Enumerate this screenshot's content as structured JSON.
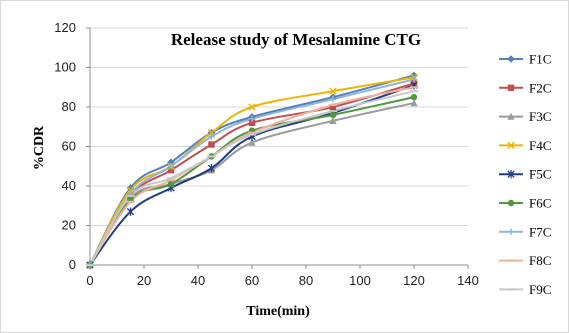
{
  "chart_data": {
    "type": "line",
    "title": "Release study of Mesalamine CTG",
    "xlabel": "Time(min)",
    "ylabel": "%CDR",
    "xlim": [
      0,
      140
    ],
    "ylim": [
      0,
      120
    ],
    "x_ticks": [
      "0",
      "20",
      "40",
      "60",
      "80",
      "100",
      "120",
      "140"
    ],
    "y_ticks": [
      "0",
      "20",
      "40",
      "60",
      "80",
      "100",
      "120"
    ],
    "grid": "horizontal",
    "legend_position": "right",
    "x": [
      0,
      15,
      30,
      45,
      60,
      90,
      120
    ],
    "series": [
      {
        "name": "F1C",
        "color": "#4f81bd",
        "marker": "diamond",
        "values": [
          0,
          39,
          52,
          67,
          75,
          85,
          96
        ]
      },
      {
        "name": "F2C",
        "color": "#c0504d",
        "marker": "square",
        "values": [
          0,
          35,
          48,
          61,
          72,
          80,
          92
        ]
      },
      {
        "name": "F3C",
        "color": "#9b9b9b",
        "marker": "triangle",
        "values": [
          0,
          34,
          41,
          48,
          62,
          73,
          82
        ]
      },
      {
        "name": "F4C",
        "color": "#f0b400",
        "marker": "x",
        "values": [
          0,
          38,
          50,
          67,
          80,
          88,
          95
        ]
      },
      {
        "name": "F5C",
        "color": "#1f3c88",
        "marker": "star",
        "values": [
          0,
          27,
          39,
          49,
          65,
          77,
          91
        ]
      },
      {
        "name": "F6C",
        "color": "#4e9a3a",
        "marker": "circle",
        "values": [
          0,
          33,
          41,
          55,
          68,
          76,
          85
        ]
      },
      {
        "name": "F7C",
        "color": "#8fb4e0",
        "marker": "plus",
        "values": [
          0,
          36,
          50,
          65,
          74,
          84,
          94
        ]
      },
      {
        "name": "F8C",
        "color": "#f2b0a0",
        "marker": "dash",
        "values": [
          0,
          32,
          43,
          55,
          67,
          81,
          90
        ]
      },
      {
        "name": "F9C",
        "color": "#c8c8c8",
        "marker": "dash",
        "values": [
          0,
          35,
          44,
          55,
          66,
          78,
          88
        ]
      }
    ]
  }
}
